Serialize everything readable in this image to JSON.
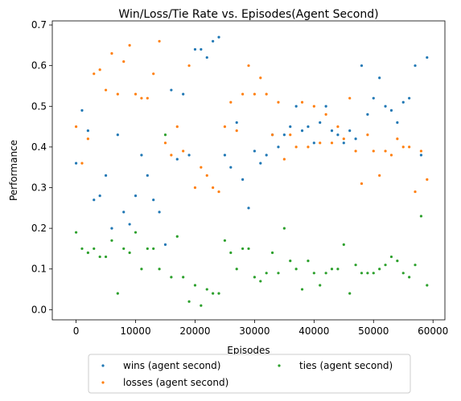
{
  "chart_data": {
    "type": "scatter",
    "title": "Win/Loss/Tie Rate vs. Episodes(Agent Second)",
    "xlabel": "Episodes",
    "ylabel": "Performance",
    "xlim": [
      -4000,
      62000
    ],
    "ylim": [
      -0.025,
      0.71
    ],
    "xticks": [
      0,
      10000,
      20000,
      30000,
      40000,
      50000,
      60000
    ],
    "xtick_labels": [
      "0",
      "10000",
      "20000",
      "30000",
      "40000",
      "50000",
      "60000"
    ],
    "yticks": [
      0.0,
      0.1,
      0.2,
      0.3,
      0.4,
      0.5,
      0.6,
      0.7
    ],
    "ytick_labels": [
      "0.0",
      "0.1",
      "0.2",
      "0.3",
      "0.4",
      "0.5",
      "0.6",
      "0.7"
    ],
    "grid": false,
    "legend_position": "below",
    "x": [
      0,
      1000,
      2000,
      3000,
      4000,
      5000,
      6000,
      7000,
      8000,
      9000,
      10000,
      11000,
      12000,
      13000,
      14000,
      15000,
      16000,
      17000,
      18000,
      19000,
      20000,
      21000,
      22000,
      23000,
      24000,
      25000,
      26000,
      27000,
      28000,
      29000,
      30000,
      31000,
      32000,
      33000,
      34000,
      35000,
      36000,
      37000,
      38000,
      39000,
      40000,
      41000,
      42000,
      43000,
      44000,
      45000,
      46000,
      47000,
      48000,
      49000,
      50000,
      51000,
      52000,
      53000,
      54000,
      55000,
      56000,
      57000,
      58000,
      59000
    ],
    "series": [
      {
        "name": "wins (agent second)",
        "color": "#1f77b4",
        "values": [
          0.36,
          0.49,
          0.44,
          0.27,
          0.28,
          0.33,
          0.2,
          0.43,
          0.24,
          0.21,
          0.28,
          0.38,
          0.33,
          0.27,
          0.24,
          0.16,
          0.54,
          0.37,
          0.53,
          0.38,
          0.64,
          0.64,
          0.62,
          0.66,
          0.67,
          0.38,
          0.35,
          0.46,
          0.32,
          0.25,
          0.39,
          0.36,
          0.38,
          0.43,
          0.4,
          0.43,
          0.45,
          0.5,
          0.44,
          0.45,
          0.41,
          0.46,
          0.5,
          0.44,
          0.43,
          0.41,
          0.44,
          0.42,
          0.6,
          0.48,
          0.52,
          0.57,
          0.5,
          0.49,
          0.46,
          0.51,
          0.52,
          0.6,
          0.38,
          0.62
        ]
      },
      {
        "name": "losses (agent second)",
        "color": "#ff7f0e",
        "values": [
          0.45,
          0.36,
          0.42,
          0.58,
          0.59,
          0.54,
          0.63,
          0.53,
          0.61,
          0.65,
          0.53,
          0.52,
          0.52,
          0.58,
          0.66,
          0.41,
          0.38,
          0.45,
          0.39,
          0.6,
          0.3,
          0.35,
          0.33,
          0.3,
          0.29,
          0.45,
          0.51,
          0.44,
          0.53,
          0.6,
          0.53,
          0.57,
          0.53,
          0.43,
          0.51,
          0.37,
          0.43,
          0.4,
          0.51,
          0.4,
          0.5,
          0.41,
          0.48,
          0.41,
          0.45,
          0.42,
          0.52,
          0.39,
          0.31,
          0.43,
          0.39,
          0.33,
          0.39,
          0.38,
          0.42,
          0.4,
          0.4,
          0.29,
          0.39,
          0.32
        ]
      },
      {
        "name": "ties (agent second)",
        "color": "#2ca02c",
        "values": [
          0.19,
          0.15,
          0.14,
          0.15,
          0.13,
          0.13,
          0.17,
          0.04,
          0.15,
          0.14,
          0.19,
          0.1,
          0.15,
          0.15,
          0.1,
          0.43,
          0.08,
          0.18,
          0.08,
          0.02,
          0.06,
          0.01,
          0.05,
          0.04,
          0.04,
          0.17,
          0.14,
          0.1,
          0.15,
          0.15,
          0.08,
          0.07,
          0.09,
          0.14,
          0.09,
          0.2,
          0.12,
          0.1,
          0.05,
          0.12,
          0.09,
          0.06,
          0.09,
          0.1,
          0.1,
          0.16,
          0.04,
          0.11,
          0.09,
          0.09,
          0.09,
          0.1,
          0.11,
          0.13,
          0.12,
          0.09,
          0.08,
          0.11,
          0.23,
          0.06
        ]
      }
    ]
  }
}
